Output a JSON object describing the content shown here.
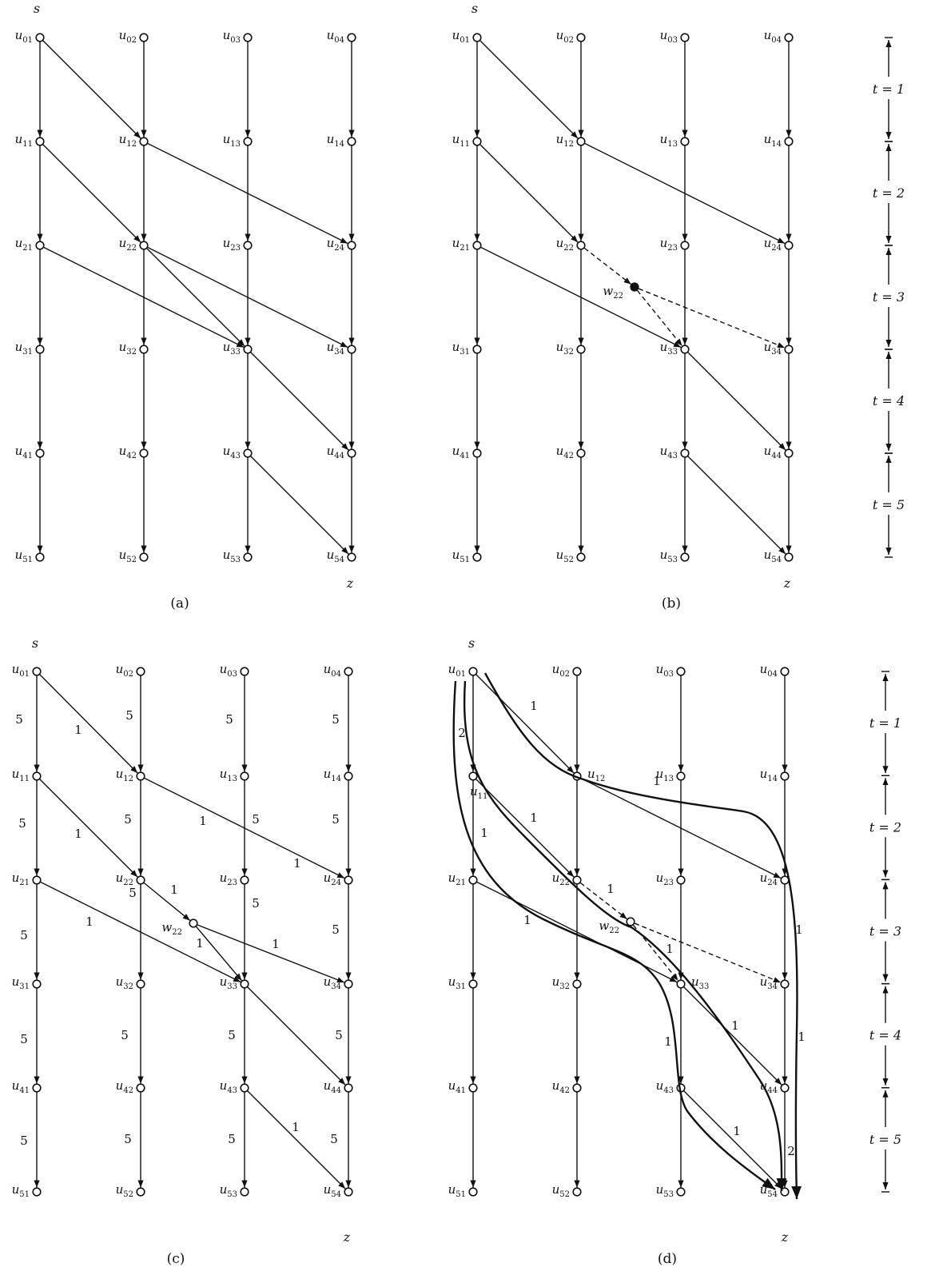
{
  "figure": {
    "panels": [
      {
        "id": "a",
        "caption": "(a)",
        "source_label": "s",
        "sink_label": "z",
        "node_labels": {
          "u01": "u01",
          "u02": "u02",
          "u03": "u03",
          "u04": "u04",
          "u11": "u11",
          "u12": "u12",
          "u13": "u13",
          "u14": "u14",
          "u21": "u21",
          "u22": "u22",
          "u23": "u23",
          "u24": "u24",
          "u31": "u31",
          "u32": "u32",
          "u33": "u33",
          "u34": "u34",
          "u41": "u41",
          "u42": "u42",
          "u43": "u43",
          "u44": "u44",
          "u51": "u51",
          "u52": "u52",
          "u53": "u53",
          "u54": "u54"
        }
      },
      {
        "id": "b",
        "caption": "(b)",
        "source_label": "s",
        "sink_label": "z",
        "extra_node_label": "w22"
      },
      {
        "id": "c",
        "caption": "(c)",
        "source_label": "s",
        "sink_label": "z",
        "extra_node_label": "w22",
        "vertical_capacity": "5",
        "diagonal_capacity": "1"
      },
      {
        "id": "d",
        "caption": "(d)",
        "source_label": "s",
        "sink_label": "z",
        "extra_node_label": "w22",
        "flow_labels": [
          "1",
          "2",
          "1",
          "1",
          "1",
          "1",
          "1",
          "1",
          "1",
          "1",
          "1",
          "1",
          "2"
        ]
      }
    ],
    "time_axis": {
      "labels": [
        "t = 1",
        "t = 2",
        "t = 3",
        "t = 4",
        "t = 5"
      ]
    },
    "edges": {
      "vertical_columns": [
        "u·1",
        "u·2",
        "u·3",
        "u·4"
      ],
      "diagonal": [
        [
          "u01",
          "u12"
        ],
        [
          "u11",
          "u22"
        ],
        [
          "u12",
          "u24"
        ],
        [
          "u21",
          "u33"
        ],
        [
          "u22",
          "u33"
        ],
        [
          "u22",
          "u34"
        ],
        [
          "u33",
          "u44"
        ],
        [
          "u43",
          "u54"
        ]
      ]
    }
  }
}
